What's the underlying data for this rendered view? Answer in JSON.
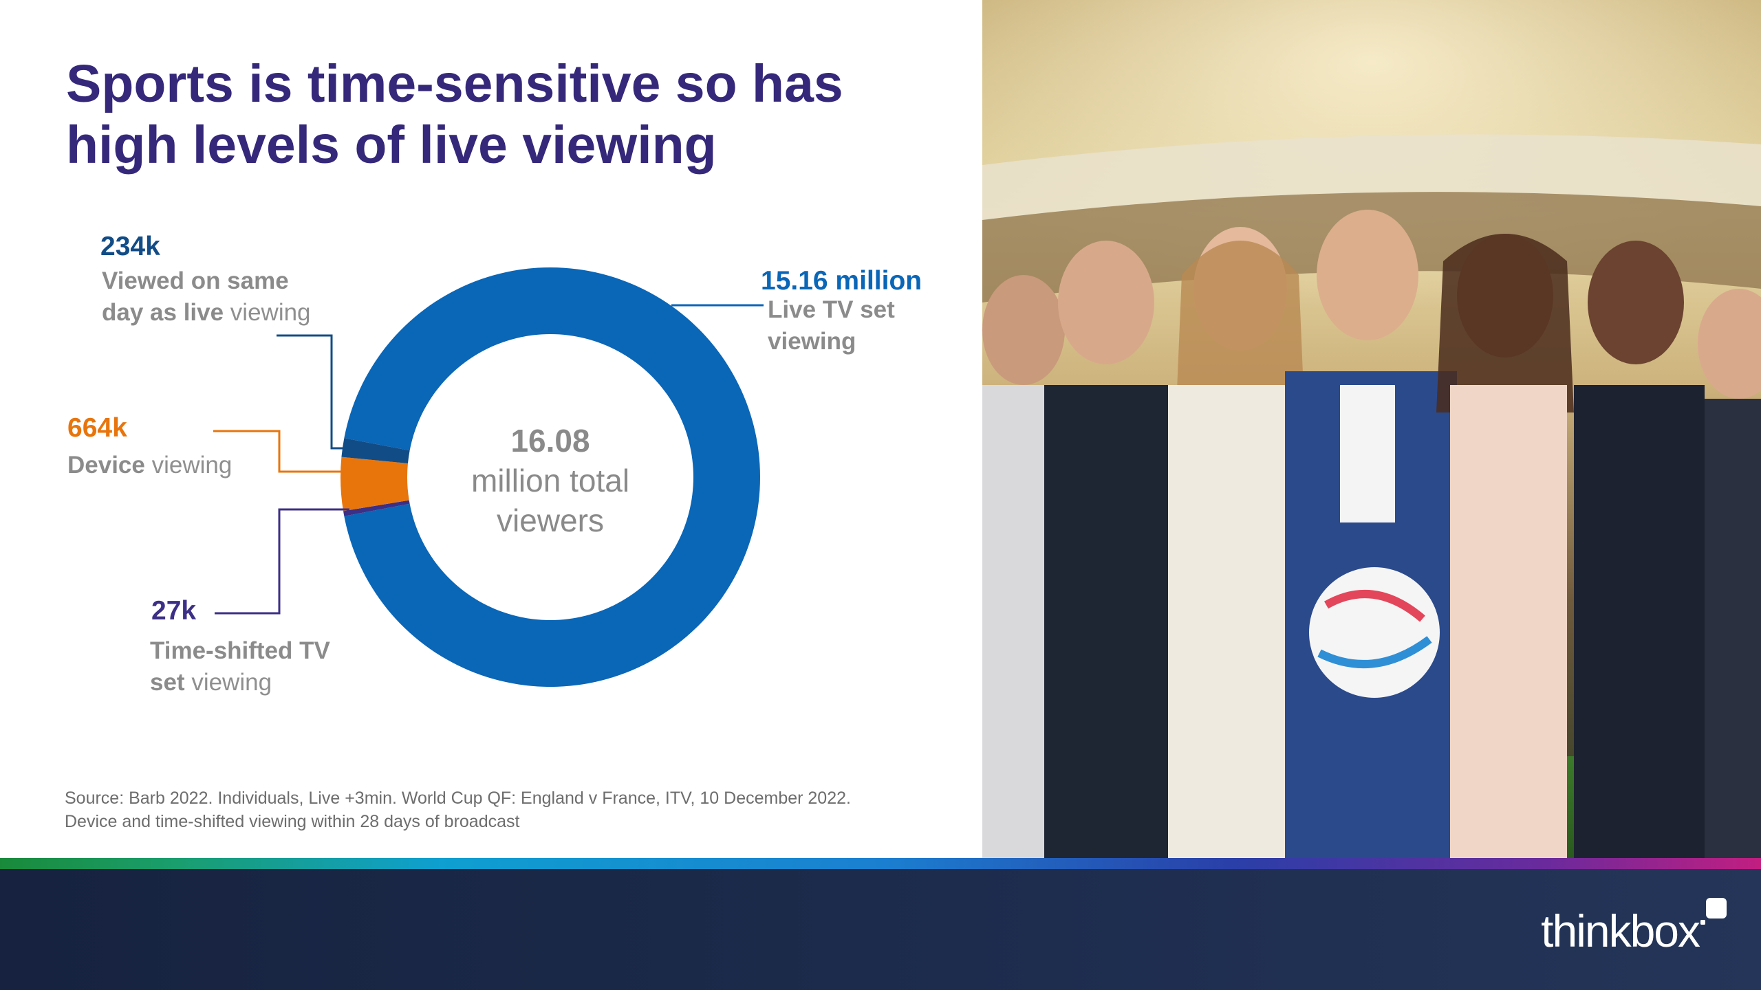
{
  "slide": {
    "title_lines": [
      "Sports is time-sensitive so has",
      "high levels of live viewing"
    ],
    "source_lines": [
      "Source: Barb 2022. Individuals, Live +3min. World Cup QF: England v France, ITV, 10 December 2022.",
      "Device and time-shifted viewing within 28 days of broadcast"
    ],
    "logo_text": "thinkbox"
  },
  "chart_data": {
    "type": "donut",
    "title": "Sports is time-sensitive so has high levels of live viewing",
    "center_label": {
      "value": "16.08",
      "line2": "million total",
      "line3": "viewers"
    },
    "total_millions": 16.08,
    "segments": [
      {
        "key": "live",
        "value_label": "15.16 million",
        "value_millions": 15.16,
        "desc_bold": "Live TV set viewing",
        "desc_normal": "",
        "color": "#0a66b7"
      },
      {
        "key": "sameday",
        "value_label": "234k",
        "value_millions": 0.234,
        "desc_bold": "Viewed on same day as live",
        "desc_normal": " viewing",
        "color": "#124c86"
      },
      {
        "key": "device",
        "value_label": "664k",
        "value_millions": 0.664,
        "desc_bold": "Device",
        "desc_normal": " viewing",
        "color": "#e8750c"
      },
      {
        "key": "timeshift",
        "value_label": "27k",
        "value_millions": 0.027,
        "desc_bold": "Time-shifted TV set",
        "desc_normal": " viewing",
        "color": "#3c2f86"
      }
    ]
  },
  "colors": {
    "title": "#35287a",
    "live_label": "#0a66b7",
    "sameday_label": "#124c86",
    "device_label": "#e8750c",
    "timeshift_label": "#3c2f86",
    "grey_text": "#8a8a8a",
    "footer_bg": "#1d2c4d"
  }
}
